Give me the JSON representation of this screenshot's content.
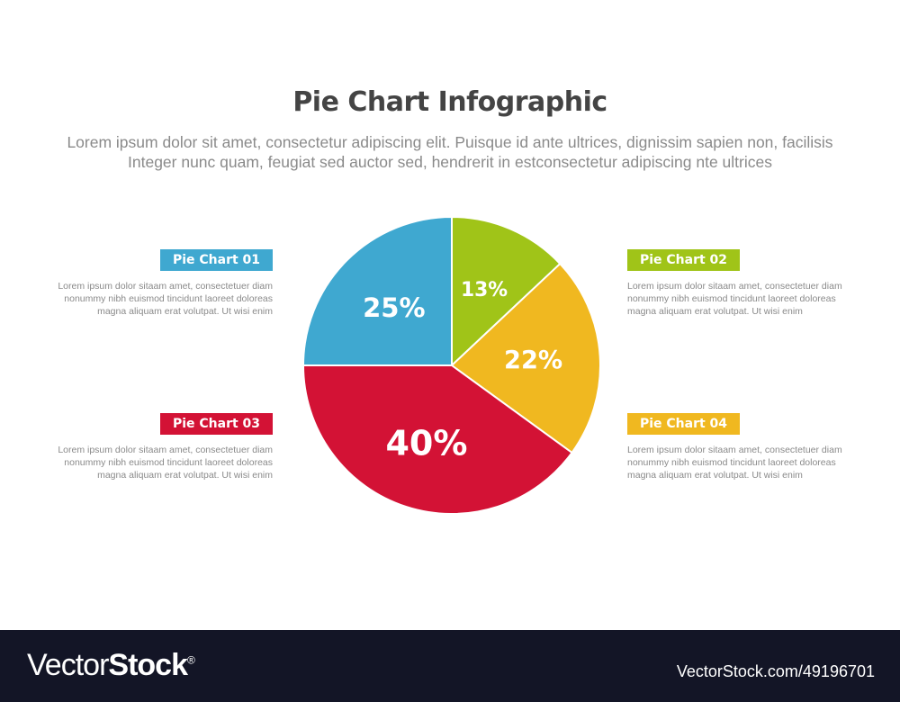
{
  "title": "Pie Chart Infographic",
  "subtitle": [
    "Lorem ipsum dolor sit amet, consectetur adipiscing elit. Puisque id ante ultrices, dignissim sapien non, facilisis",
    "Integer nunc quam, feugiat sed auctor sed, hendrerit in estconsectetur adipiscing nte ultrices"
  ],
  "items": [
    {
      "label": "Pie Chart 01",
      "color": "#3fa8d0",
      "text": [
        "Lorem ipsum dolor sitaam amet, consectetuer diam",
        "nonummy  nibh euismod tincidunt laoreet doloreas",
        "magna aliquam erat volutpat. Ut wisi enim"
      ]
    },
    {
      "label": "Pie Chart 02",
      "color": "#a0c418",
      "text": [
        "Lorem ipsum dolor sitaam amet, consectetuer diam",
        "nonummy  nibh euismod tincidunt laoreet doloreas",
        "magna aliquam erat volutpat. Ut wisi enim"
      ]
    },
    {
      "label": "Pie Chart 03",
      "color": "#d31235",
      "text": [
        "Lorem ipsum dolor sitaam amet, consectetuer diam",
        "nonummy  nibh euismod tincidunt laoreet doloreas",
        "magna aliquam erat volutpat. Ut wisi enim"
      ]
    },
    {
      "label": "Pie Chart 04",
      "color": "#f0b820",
      "text": [
        "Lorem ipsum dolor sitaam amet, consectetuer diam",
        "nonummy  nibh euismod tincidunt laoreet doloreas",
        "magna aliquam erat volutpat. Ut wisi enim"
      ]
    }
  ],
  "chart_data": {
    "type": "pie",
    "start": "top, clockwise",
    "slices": [
      {
        "value": 13,
        "label": "13%",
        "color": "#a0c418"
      },
      {
        "value": 22,
        "label": "22%",
        "color": "#f0b820"
      },
      {
        "value": 40,
        "label": "40%",
        "color": "#d31235"
      },
      {
        "value": 25,
        "label": "25%",
        "color": "#3fa8d0"
      }
    ]
  },
  "footer": {
    "logo_light": "Vector",
    "logo_bold": "Stock",
    "logo_mark": "®",
    "url": "VectorStock.com/49196701"
  }
}
